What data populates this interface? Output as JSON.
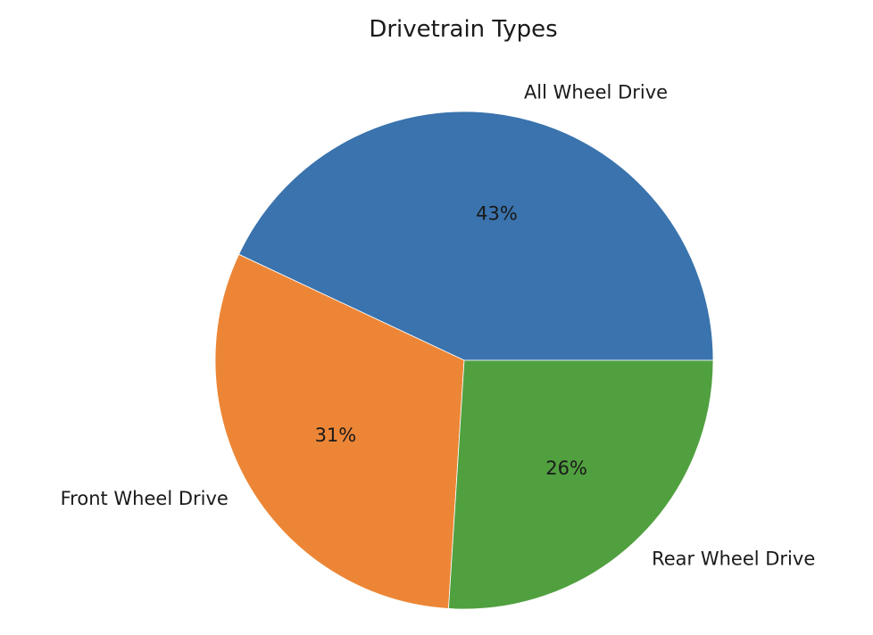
{
  "chart_data": {
    "type": "pie",
    "title": "Drivetrain Types",
    "slices": [
      {
        "label": "All Wheel Drive",
        "value": 43,
        "pct_label": "43%",
        "color": "#3a73ad"
      },
      {
        "label": "Front Wheel Drive",
        "value": 31,
        "pct_label": "31%",
        "color": "#ec8636"
      },
      {
        "label": "Rear Wheel Drive",
        "value": 26,
        "pct_label": "26%",
        "color": "#51a040"
      }
    ],
    "start_angle_deg": 0,
    "direction": "counterclockwise",
    "legend": "none"
  }
}
